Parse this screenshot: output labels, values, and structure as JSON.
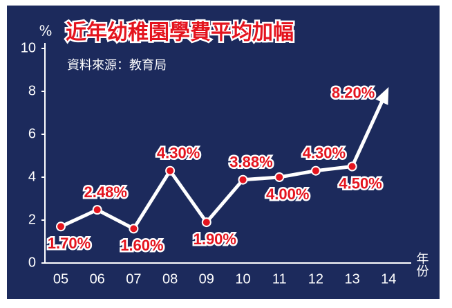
{
  "chart_data": {
    "type": "line",
    "title": "近年幼稚園學費平均加幅",
    "subtitle": "資料來源：教育局",
    "y_label": "%",
    "x_label": "年份",
    "categories": [
      "05",
      "06",
      "07",
      "08",
      "09",
      "10",
      "11",
      "12",
      "13",
      "14"
    ],
    "values": [
      1.7,
      2.48,
      1.6,
      4.3,
      1.9,
      3.88,
      4.0,
      4.3,
      4.5,
      8.2
    ],
    "value_labels": [
      "1.70%",
      "2.48%",
      "1.60%",
      "4.30%",
      "1.90%",
      "3.88%",
      "4.00%",
      "4.30%",
      "4.50%",
      "8.20%"
    ],
    "color": "#ffffff",
    "marker_color": "#e4141e",
    "ylim": [
      0,
      10
    ],
    "yticks": [
      0,
      2,
      4,
      6,
      8,
      10
    ],
    "grid": false
  }
}
